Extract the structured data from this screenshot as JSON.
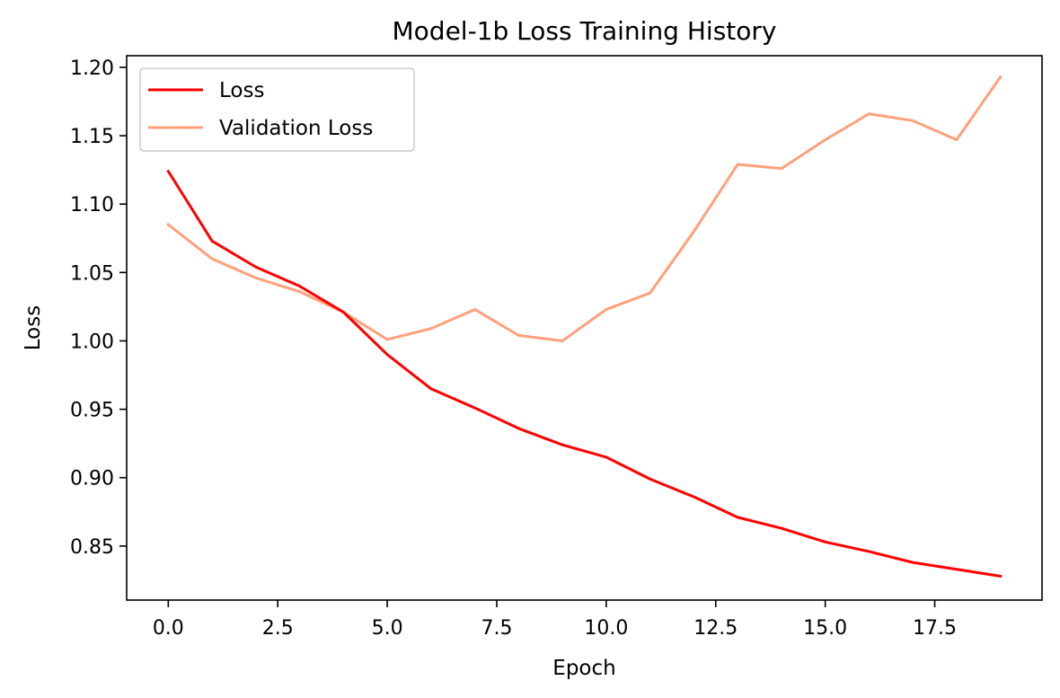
{
  "chart_data": {
    "type": "line",
    "title": "Model-1b Loss Training History",
    "xlabel": "Epoch",
    "ylabel": "Loss",
    "x": [
      0,
      1,
      2,
      3,
      4,
      5,
      6,
      7,
      8,
      9,
      10,
      11,
      12,
      13,
      14,
      15,
      16,
      17,
      18,
      19
    ],
    "xlim": [
      -0.95,
      19.95
    ],
    "ylim": [
      0.8105,
      1.2085
    ],
    "xticks": [
      0.0,
      2.5,
      5.0,
      7.5,
      10.0,
      12.5,
      15.0,
      17.5
    ],
    "xtick_labels": [
      "0.0",
      "2.5",
      "5.0",
      "7.5",
      "10.0",
      "12.5",
      "15.0",
      "17.5"
    ],
    "yticks": [
      0.85,
      0.9,
      0.95,
      1.0,
      1.05,
      1.1,
      1.15,
      1.2
    ],
    "ytick_labels": [
      "0.85",
      "0.90",
      "0.95",
      "1.00",
      "1.05",
      "1.10",
      "1.15",
      "1.20"
    ],
    "grid": false,
    "legend_position": "top-left",
    "series": [
      {
        "name": "Loss",
        "color": "#ff0000",
        "values": [
          1.124,
          1.073,
          1.054,
          1.04,
          1.021,
          0.99,
          0.965,
          0.951,
          0.936,
          0.924,
          0.915,
          0.899,
          0.886,
          0.871,
          0.863,
          0.853,
          0.846,
          0.838,
          0.833,
          0.828
        ]
      },
      {
        "name": "Validation Loss",
        "color": "#ffa07a",
        "values": [
          1.085,
          1.06,
          1.046,
          1.036,
          1.021,
          1.001,
          1.009,
          1.023,
          1.004,
          1.0,
          1.023,
          1.035,
          1.08,
          1.129,
          1.126,
          1.147,
          1.166,
          1.161,
          1.147,
          1.193
        ]
      }
    ]
  }
}
